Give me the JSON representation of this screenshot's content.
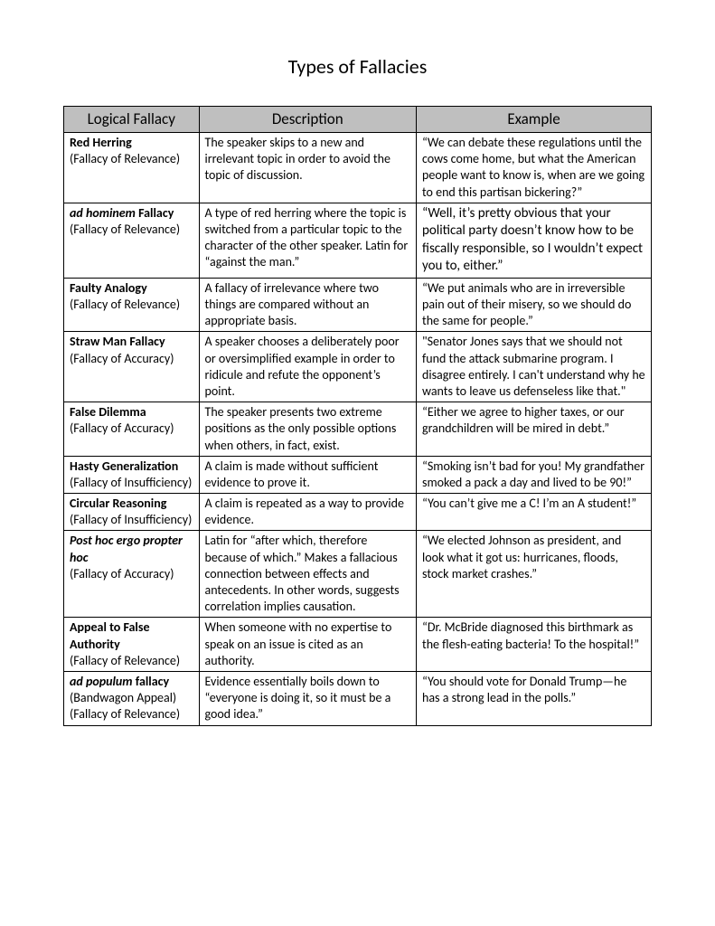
{
  "title": "Types of Fallacies",
  "columns": [
    "Logical Fallacy",
    "Description",
    "Example"
  ],
  "rows": [
    {
      "name_bold": "Red Herring",
      "name_italic": "",
      "category": "(Fallacy of Relevance)",
      "description": "The speaker skips to a new and irrelevant topic in order to avoid the topic of discussion.",
      "example": "“We can debate these regulations until the cows come home, but what the American people want to know is, when are we going to end this partisan bickering?”"
    },
    {
      "name_bold": "",
      "name_italic": "ad hominem",
      "name_bold_after": "Fallacy",
      "category": "(Fallacy of Relevance)",
      "description": "A type of red herring where the topic is switched from a particular topic to the character of the other speaker. Latin for “against the man.”",
      "example": "“Well, it’s pretty obvious that your political party doesn’t know how to be fiscally responsible, so I wouldn’t expect you to, either.”",
      "example_large": true
    },
    {
      "name_bold": "Faulty Analogy",
      "name_italic": "",
      "category": "(Fallacy of Relevance)",
      "description": "A fallacy of irrelevance where two things are compared without an appropriate basis.",
      "example": "“We put animals who are in irreversible pain out of their misery, so we should do the same for people.”"
    },
    {
      "name_bold": "Straw Man Fallacy",
      "name_italic": "",
      "category": "(Fallacy of Accuracy)",
      "description": "A speaker chooses a deliberately poor or oversimplified example in order to ridicule and refute the opponent’s point.",
      "example": "\"Senator Jones says that we should not fund the attack submarine program. I disagree entirely. I can't understand why he wants to leave us defenseless like that.\""
    },
    {
      "name_bold": "False Dilemma",
      "name_italic": "",
      "category": "(Fallacy of Accuracy)",
      "description": "The speaker presents two extreme positions as the only possible options when others, in fact, exist.",
      "example": "“Either we agree to higher taxes, or our grandchildren will be mired in debt.”"
    },
    {
      "name_bold": "Hasty Generalization",
      "name_italic": "",
      "category": "(Fallacy of Insufficiency)",
      "description": "A claim is made without sufficient evidence to prove it.",
      "example": "“Smoking isn’t bad for you! My grandfather smoked a pack a day and lived to be 90!”"
    },
    {
      "name_bold": "Circular Reasoning",
      "name_italic": "",
      "category": "(Fallacy of Insufficiency)",
      "description": "A claim is repeated as a way to provide evidence.",
      "example": "“You can’t give me a C! I’m an A student!”"
    },
    {
      "name_bold": "",
      "name_italic": "Post hoc ergo propter hoc",
      "name_bold_after": "",
      "category": "(Fallacy of Accuracy)",
      "description": "Latin for “after which, therefore because of which.” Makes a fallacious connection between effects and antecedents. In other words, suggests correlation implies causation.",
      "example": "“We elected Johnson as president, and look what it got us: hurricanes, floods, stock market crashes.”"
    },
    {
      "name_bold": "Appeal to False Authority",
      "name_italic": "",
      "category": "(Fallacy of Relevance)",
      "description": "When someone with no expertise to speak on an issue is cited as an authority.",
      "example": "“Dr. McBride diagnosed this birthmark as the flesh-eating bacteria! To the hospital!”"
    },
    {
      "name_bold": "",
      "name_italic": "ad populum",
      "name_bold_after": "fallacy",
      "category": "(Bandwagon Appeal)\n(Fallacy of Relevance)",
      "description": "Evidence essentially boils down to “everyone is doing it, so it must be a good idea.”",
      "example": "“You should vote for Donald Trump—he has a strong lead in the polls.”"
    }
  ]
}
